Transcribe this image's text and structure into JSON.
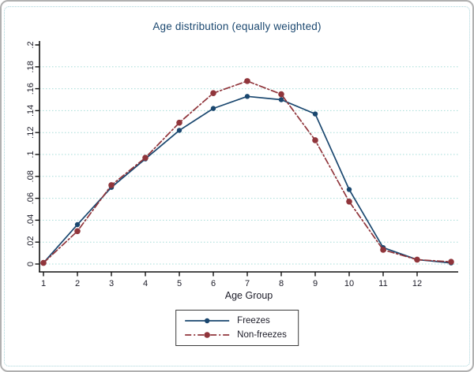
{
  "title": "Age distribution (equally weighted)",
  "chart_data": {
    "type": "line",
    "title": "Age distribution (equally weighted)",
    "xlabel": "Age Group",
    "ylabel": "",
    "x": [
      1,
      2,
      3,
      4,
      5,
      6,
      7,
      8,
      9,
      10,
      11,
      12,
      13
    ],
    "x_tick_labels": [
      "1",
      "2",
      "3",
      "4",
      "5",
      "6",
      "7",
      "8",
      "9",
      "10",
      "11",
      "12"
    ],
    "y_ticks": [
      0,
      0.02,
      0.04,
      0.06,
      0.08,
      0.1,
      0.12,
      0.14,
      0.16,
      0.18,
      0.2
    ],
    "y_tick_labels": [
      "0",
      ".02",
      ".04",
      ".06",
      ".08",
      ".1",
      ".12",
      ".14",
      ".16",
      ".18",
      ".2"
    ],
    "ylim": [
      0,
      0.2
    ],
    "xlim": [
      1,
      13
    ],
    "grid": "horizontal-dotted",
    "legend_position": "bottom-center",
    "series": [
      {
        "name": "Freezes",
        "color": "#1a476f",
        "line_style": "solid",
        "marker": "circle",
        "marker_size": 3.2,
        "values": [
          0.001,
          0.036,
          0.07,
          0.096,
          0.122,
          0.142,
          0.153,
          0.15,
          0.137,
          0.068,
          0.015,
          0.004,
          0.001
        ]
      },
      {
        "name": "Non-freezes",
        "color": "#90353b",
        "line_style": "dash-dot",
        "marker": "circle",
        "marker_size": 3.8,
        "values": [
          0.001,
          0.03,
          0.072,
          0.097,
          0.129,
          0.156,
          0.167,
          0.155,
          0.113,
          0.057,
          0.013,
          0.004,
          0.002
        ]
      }
    ]
  },
  "colors": {
    "title": "#1a476f",
    "axis_text": "#1c1c28",
    "axis_line": "#111111",
    "gridline": "#a5dcd8",
    "outer_border": "#b0b0b0",
    "inner_border": "#a8d4da",
    "legend_border": "#3a3a3a",
    "background": "#ffffff"
  }
}
